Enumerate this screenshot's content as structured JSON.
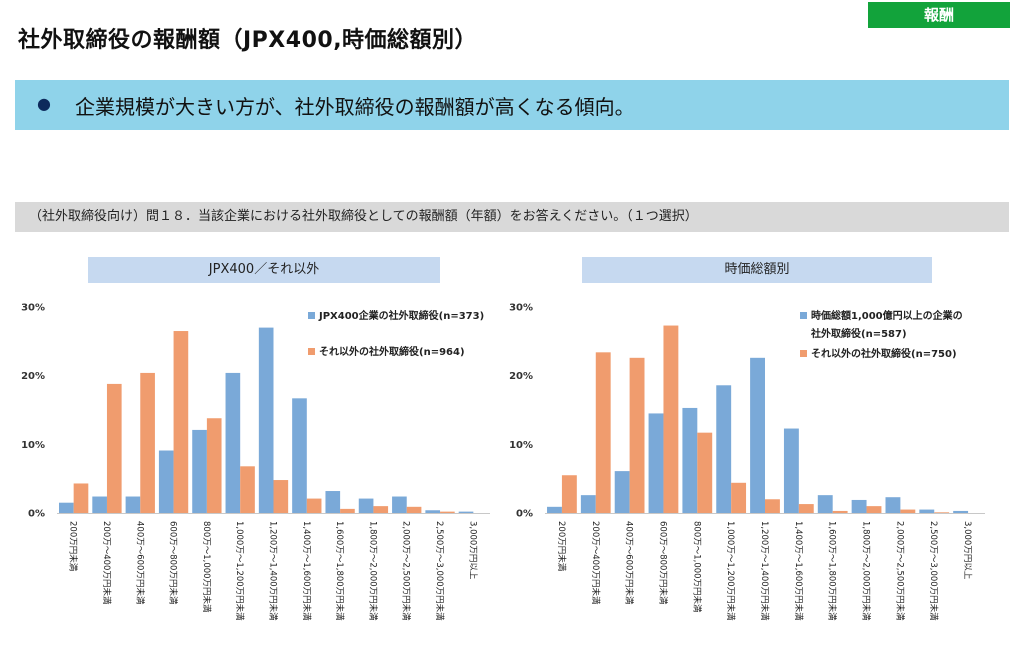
{
  "page": {
    "title": "社外取締役の報酬額（JPX400,時価総額別）",
    "tag": "報酬",
    "banner": {
      "bullet": "●",
      "text": "企業規模が大きい方が、社外取締役の報酬額が高くなる傾向。"
    },
    "question": "（社外取締役向け）問１８．当該企業における社外取締役としての報酬額（年額）をお答えください。（１つ選択）"
  },
  "colors": {
    "series1": "#7aa9d8",
    "series2": "#f09c6e",
    "tag_bg": "#12a33b",
    "banner_bg": "#8fd3ea",
    "question_bg": "#d9d9d9",
    "chart_head_bg": "#c6d9f0"
  },
  "chart_data": [
    {
      "type": "bar",
      "header": "JPX400／それ以外",
      "categories": [
        "200万円未満",
        "200万～400万円未満",
        "400万～600万円未満",
        "600万～800万円未満",
        "800万～1,000万円未満",
        "1,000万～1,200万円未満",
        "1,200万～1,400万円未満",
        "1,400万～1,600万円未満",
        "1,600万～1,800万円未満",
        "1,800万～2,000万円未満",
        "2,000万～2,500万円未満",
        "2,500万～3,000万円未満",
        "3,000万円以上"
      ],
      "yticks": [
        "0%",
        "10%",
        "20%",
        "30%"
      ],
      "ylim": [
        0,
        30
      ],
      "legend": [
        "JPX400企業の社外取締役(n=373)",
        "それ以外の社外取締役(n=964)"
      ],
      "series": [
        {
          "name": "JPX400企業の社外取締役(n=373)",
          "values": [
            1.5,
            2.4,
            2.4,
            9.1,
            12.1,
            20.4,
            27.0,
            16.7,
            3.2,
            2.1,
            2.4,
            0.4,
            0.2
          ]
        },
        {
          "name": "それ以外の社外取締役(n=964)",
          "values": [
            4.3,
            18.8,
            20.4,
            26.5,
            13.8,
            6.8,
            4.8,
            2.1,
            0.6,
            1.0,
            0.9,
            0.2,
            0.0
          ]
        }
      ]
    },
    {
      "type": "bar",
      "header": "時価総額別",
      "categories": [
        "200万円未満",
        "200万～400万円未満",
        "400万～600万円未満",
        "600万～800万円未満",
        "800万～1,000万円未満",
        "1,000万～1,200万円未満",
        "1,200万～1,400万円未満",
        "1,400万～1,600万円未満",
        "1,600万～1,800万円未満",
        "1,800万～2,000万円未満",
        "2,000万～2,500万円未満",
        "2,500万～3,000万円未満",
        "3,000万円以上"
      ],
      "yticks": [
        "0%",
        "10%",
        "20%",
        "30%"
      ],
      "ylim": [
        0,
        30
      ],
      "legend": [
        "時価総額1,000億円以上の企業の社外取締役(n=587)",
        "それ以外の社外取締役(n=750)"
      ],
      "series": [
        {
          "name": "時価総額1,000億円以上の企業の社外取締役(n=587)",
          "values": [
            0.9,
            2.6,
            6.1,
            14.5,
            15.3,
            18.6,
            22.6,
            12.3,
            2.6,
            1.9,
            2.3,
            0.5,
            0.3
          ]
        },
        {
          "name": "それ以外の社外取締役(n=750)",
          "values": [
            5.5,
            23.4,
            22.6,
            27.3,
            11.7,
            4.4,
            2.0,
            1.3,
            0.3,
            1.0,
            0.5,
            0.1,
            0.0
          ]
        }
      ]
    }
  ]
}
